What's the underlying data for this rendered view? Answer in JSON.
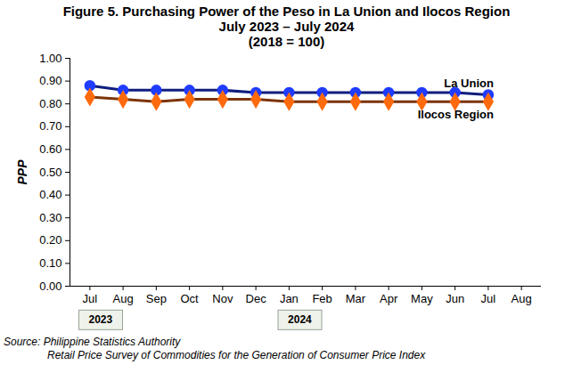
{
  "chart_data": {
    "type": "line",
    "title": "Figure 5.  Purchasing Power of the Peso in La Union and Ilocos Region",
    "subtitle": [
      "July 2023 – July 2024",
      "(2018 = 100)"
    ],
    "y_label": "PPP",
    "categories": [
      "Jul",
      "Aug",
      "Sep",
      "Oct",
      "Nov",
      "Dec",
      "Jan",
      "Feb",
      "Mar",
      "Apr",
      "May",
      "Jun",
      "Jul",
      "Aug"
    ],
    "annotations": [
      {
        "text": "2023",
        "index": 0
      },
      {
        "text": "2024",
        "index": 6
      }
    ],
    "series": [
      {
        "name": "La Union",
        "color": "#1f3cff",
        "marker": "circle",
        "values": [
          0.88,
          0.86,
          0.86,
          0.86,
          0.86,
          0.85,
          0.85,
          0.85,
          0.85,
          0.85,
          0.85,
          0.85,
          0.84,
          null
        ]
      },
      {
        "name": "Ilocos Region",
        "color": "#ff6a0d",
        "marker": "diamond",
        "values": [
          0.83,
          0.82,
          0.81,
          0.82,
          0.82,
          0.82,
          0.81,
          0.81,
          0.81,
          0.81,
          0.81,
          0.81,
          0.81,
          null
        ]
      }
    ],
    "ylim": [
      0,
      1
    ],
    "yticks": [
      {
        "value": 0,
        "label": "0.00"
      },
      {
        "value": 0.1,
        "label": "0.10"
      },
      {
        "value": 0.2,
        "label": "0.20"
      },
      {
        "value": 0.3,
        "label": "0.30"
      },
      {
        "value": 0.4,
        "label": "0.40"
      },
      {
        "value": 0.5,
        "label": "0.50"
      },
      {
        "value": 0.6,
        "label": "0.60"
      },
      {
        "value": 0.7,
        "label": "0.70"
      },
      {
        "value": 0.8,
        "label": "0.80"
      },
      {
        "value": 0.9,
        "label": "0.90"
      },
      {
        "value": 1,
        "label": "1.00"
      }
    ],
    "grid": false,
    "source": [
      "Source:  Philippine Statistics Authority",
      "Retail Price Survey of Commodities for the Generation of Consumer Price Index"
    ]
  }
}
